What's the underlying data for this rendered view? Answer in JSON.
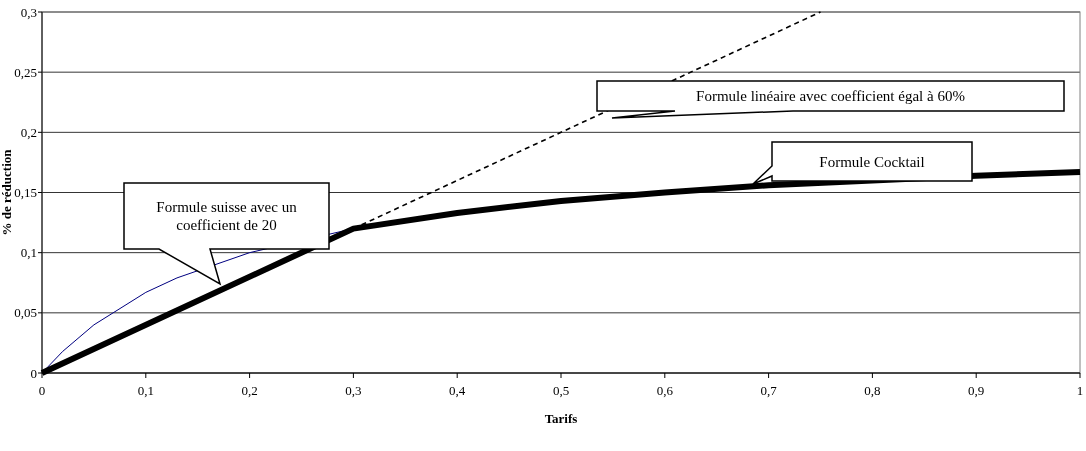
{
  "chart_data": {
    "type": "line",
    "xlabel": "Tarifs",
    "ylabel": "% de réduction",
    "xlim": [
      0,
      1
    ],
    "xticks": [
      0,
      {
        "value": 0.1,
        "label": "0,1"
      },
      {
        "value": 0.2,
        "label": "0,2"
      },
      {
        "value": 0.3,
        "label": "0,3"
      },
      {
        "value": 0.4,
        "label": "0,4"
      },
      {
        "value": 0.5,
        "label": "0,5"
      },
      {
        "value": 0.6,
        "label": "0,6"
      },
      {
        "value": 0.7,
        "label": "0,7"
      },
      {
        "value": 0.8,
        "label": "0,8"
      },
      {
        "value": 0.9,
        "label": "0,9"
      },
      1
    ],
    "ylim": [
      0,
      0.3
    ],
    "yticks": [
      0,
      {
        "value": 0.05,
        "label": "0,05"
      },
      {
        "value": 0.1,
        "label": "0,1"
      },
      {
        "value": 0.15,
        "label": "0,15"
      },
      {
        "value": 0.2,
        "label": "0,2"
      },
      {
        "value": 0.25,
        "label": "0,25"
      },
      {
        "value": 0.3,
        "label": "0,3"
      }
    ],
    "grid": "y",
    "marker": "none",
    "series": [
      {
        "color": "#000080",
        "line_style": "solid",
        "x": [
          0,
          0.02,
          0.05,
          0.1,
          0.13,
          0.2,
          0.3
        ],
        "values": [
          0,
          0.018,
          0.04,
          0.067,
          0.079,
          0.1,
          0.12
        ]
      },
      {
        "color": "#000000",
        "line_style": "dashed",
        "x": [
          0.3,
          0.75
        ],
        "values": [
          0.12,
          0.3
        ]
      },
      {
        "color": "#000000",
        "line_style": "solid",
        "x": [
          0,
          0.3,
          0.4,
          0.5,
          0.6,
          0.7,
          0.9,
          1
        ],
        "values": [
          0,
          0.12,
          0.133,
          0.143,
          0.15,
          0.156,
          0.164,
          0.167
        ]
      }
    ],
    "annotations": [
      "Formule suisse avec un coefficient de 20",
      "Formule linéaire avec coefficient égal à 60%",
      "Formule Cocktail"
    ]
  }
}
